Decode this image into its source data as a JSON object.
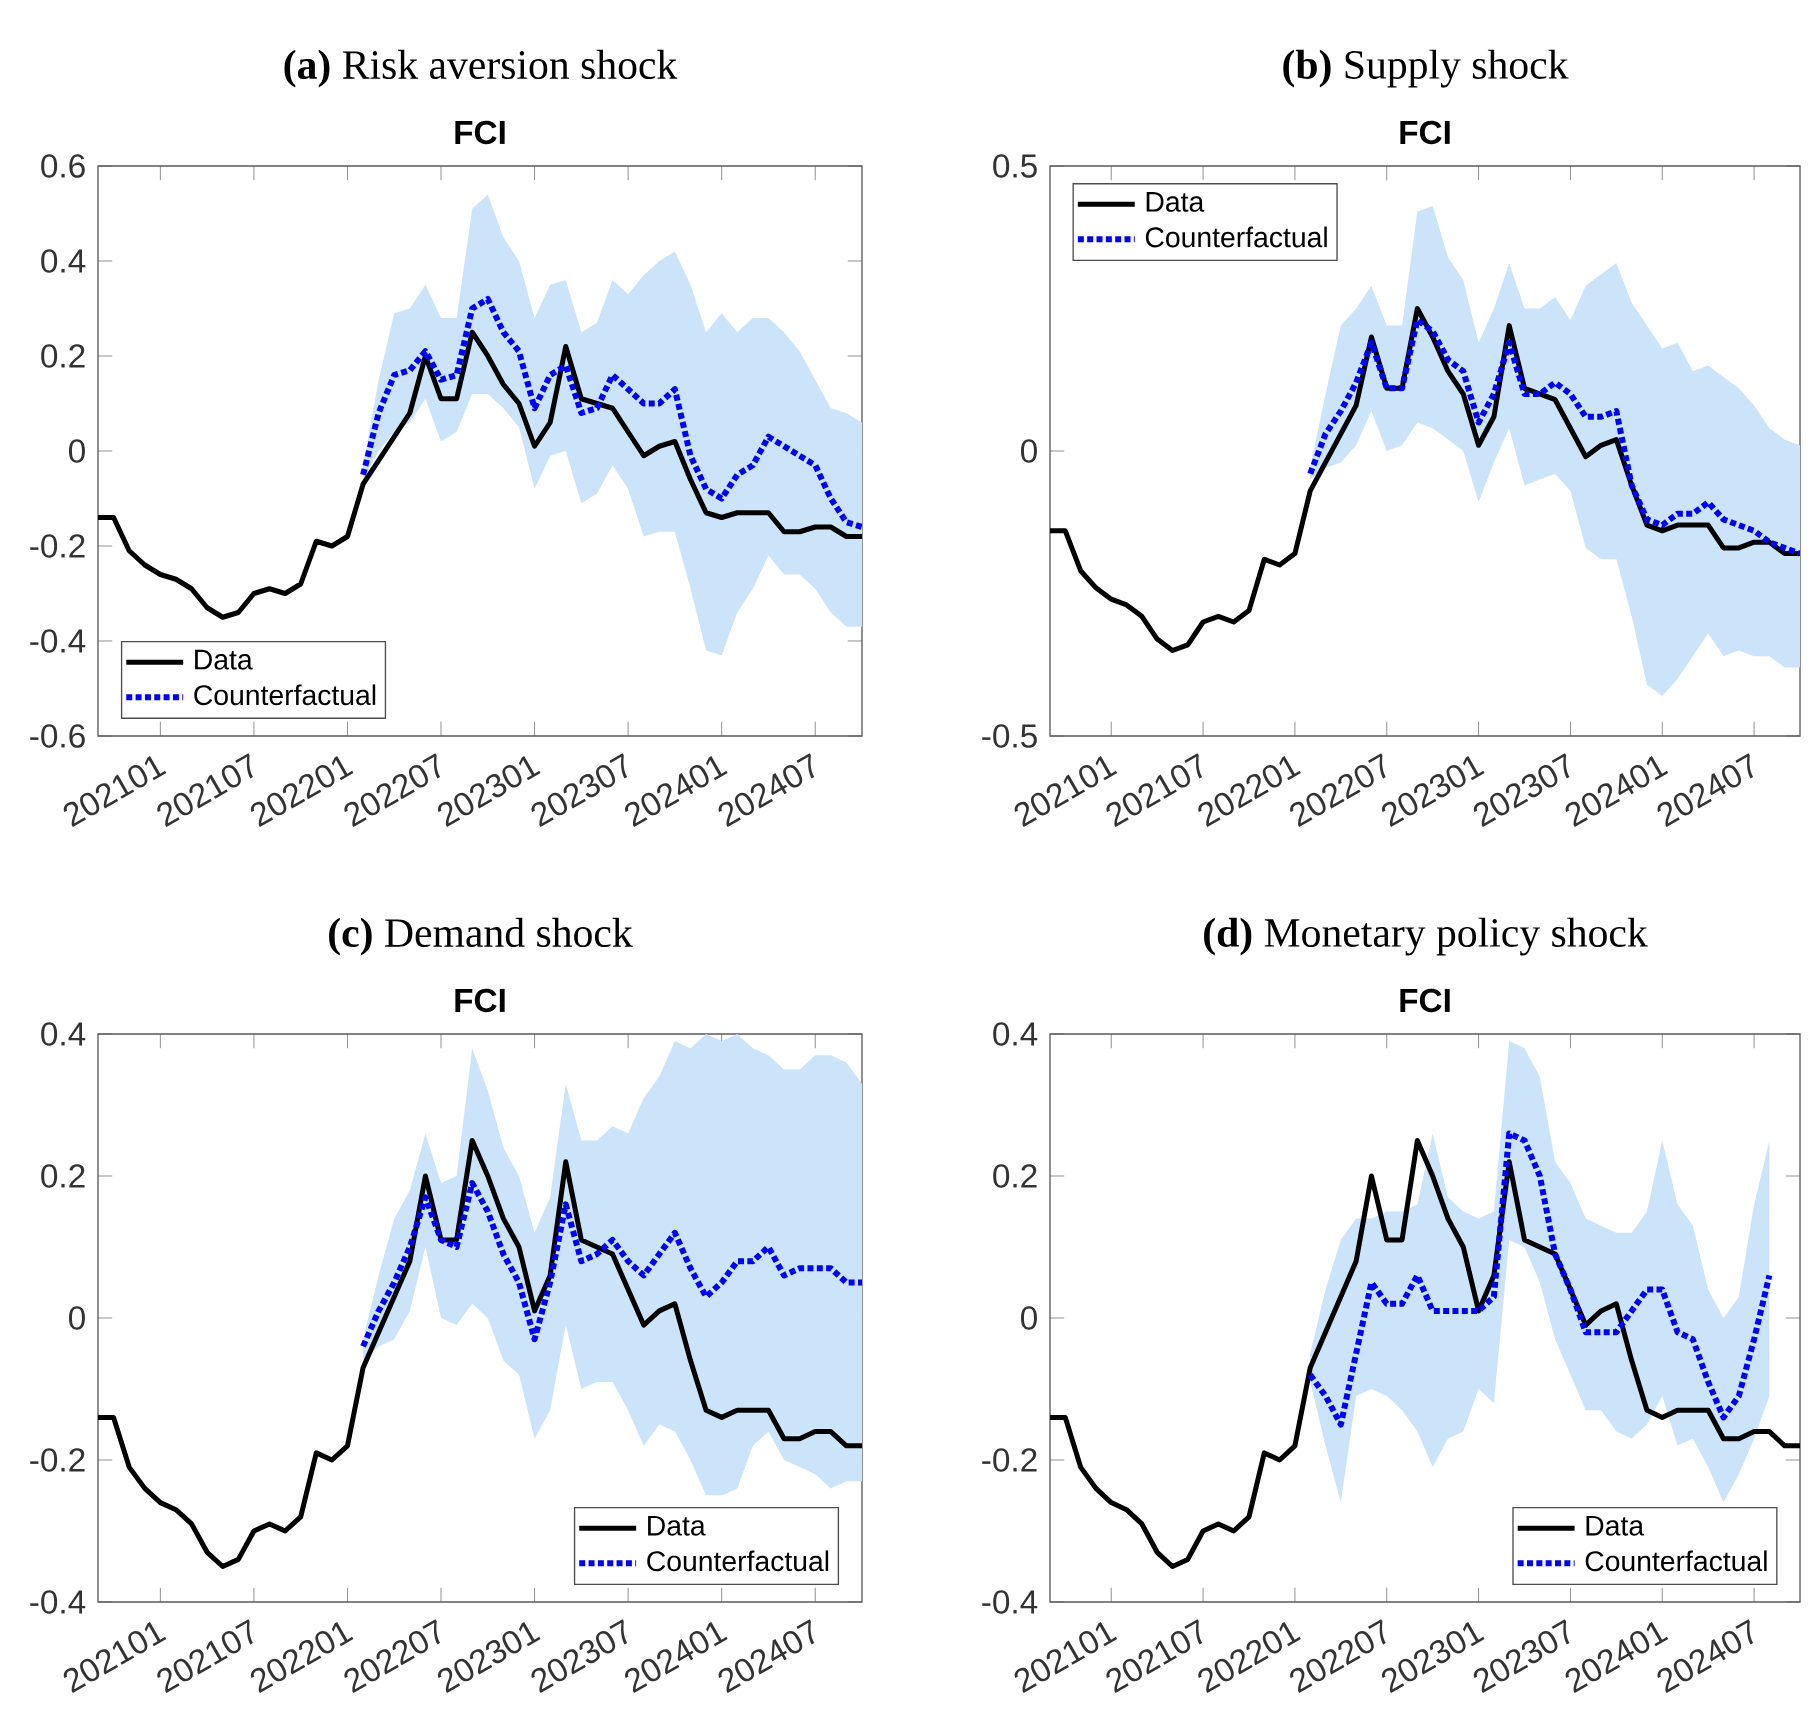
{
  "chart_data": [
    {
      "type": "line",
      "title": "**(a)** Risk aversion shock",
      "subtitle": "FCI",
      "legend": "bottom left",
      "xlim": [
        "2020-09",
        "2024-10"
      ],
      "ylim": [
        -0.6,
        0.6
      ],
      "yticks": [
        -0.6,
        -0.4,
        -0.2,
        0,
        0.2,
        0.4,
        0.6
      ],
      "xticks": [
        {
          "value": "2021-01",
          "label": "202101"
        },
        {
          "value": "2021-07",
          "label": "202107"
        },
        {
          "value": "2022-01",
          "label": "202201"
        },
        {
          "value": "2022-07",
          "label": "202207"
        },
        {
          "value": "2023-01",
          "label": "202301"
        },
        {
          "value": "2023-07",
          "label": "202307"
        },
        {
          "value": "2024-01",
          "label": "202401"
        },
        {
          "value": "2024-07",
          "label": "202407"
        }
      ],
      "x": [
        "2020-09",
        "2020-10",
        "2020-11",
        "2020-12",
        "2021-01",
        "2021-02",
        "2021-03",
        "2021-04",
        "2021-05",
        "2021-06",
        "2021-07",
        "2021-08",
        "2021-09",
        "2021-10",
        "2021-11",
        "2021-12",
        "2022-01",
        "2022-02",
        "2022-03",
        "2022-04",
        "2022-05",
        "2022-06",
        "2022-07",
        "2022-08",
        "2022-09",
        "2022-10",
        "2022-11",
        "2022-12",
        "2023-01",
        "2023-02",
        "2023-03",
        "2023-04",
        "2023-05",
        "2023-06",
        "2023-07",
        "2023-08",
        "2023-09",
        "2023-10",
        "2023-11",
        "2023-12",
        "2024-01",
        "2024-02",
        "2024-03",
        "2024-04",
        "2024-05",
        "2024-06",
        "2024-07",
        "2024-08",
        "2024-09",
        "2024-10"
      ],
      "series": [
        {
          "name": "Data",
          "color": "#000000",
          "line_style": "solid",
          "values": [
            -0.14,
            -0.14,
            -0.21,
            -0.24,
            -0.26,
            -0.27,
            -0.29,
            -0.33,
            -0.35,
            -0.34,
            -0.3,
            -0.29,
            -0.3,
            -0.28,
            -0.19,
            -0.2,
            -0.18,
            -0.07,
            -0.02,
            0.03,
            0.08,
            0.2,
            0.11,
            0.11,
            0.25,
            0.2,
            0.14,
            0.1,
            0.01,
            0.06,
            0.22,
            0.11,
            0.1,
            0.09,
            0.04,
            -0.01,
            0.01,
            0.02,
            -0.06,
            -0.13,
            -0.14,
            -0.13,
            -0.13,
            -0.13,
            -0.17,
            -0.17,
            -0.16,
            -0.16,
            -0.18,
            -0.18
          ]
        },
        {
          "name": "Counterfactual",
          "color": "#0000ff",
          "line_style": "dotted",
          "x": [
            "2022-02",
            "2022-03",
            "2022-04",
            "2022-05",
            "2022-06",
            "2022-07",
            "2022-08",
            "2022-09",
            "2022-10",
            "2022-11",
            "2022-12",
            "2023-01",
            "2023-02",
            "2023-03",
            "2023-04",
            "2023-05",
            "2023-06",
            "2023-07",
            "2023-08",
            "2023-09",
            "2023-10",
            "2023-11",
            "2023-12",
            "2024-01",
            "2024-02",
            "2024-03",
            "2024-04",
            "2024-05",
            "2024-06",
            "2024-07",
            "2024-08",
            "2024-09",
            "2024-10"
          ],
          "values": [
            -0.05,
            0.08,
            0.16,
            0.17,
            0.21,
            0.15,
            0.16,
            0.3,
            0.32,
            0.25,
            0.21,
            0.09,
            0.16,
            0.18,
            0.08,
            0.09,
            0.16,
            0.13,
            0.1,
            0.1,
            0.13,
            -0.01,
            -0.08,
            -0.1,
            -0.05,
            -0.03,
            0.03,
            0.01,
            -0.01,
            -0.03,
            -0.1,
            -0.15,
            -0.16
          ],
          "upper": [
            -0.03,
            0.15,
            0.29,
            0.3,
            0.35,
            0.28,
            0.28,
            0.51,
            0.54,
            0.45,
            0.4,
            0.28,
            0.35,
            0.36,
            0.25,
            0.27,
            0.36,
            0.33,
            0.37,
            0.4,
            0.42,
            0.35,
            0.25,
            0.29,
            0.25,
            0.28,
            0.28,
            0.25,
            0.21,
            0.15,
            0.09,
            0.08,
            0.06
          ],
          "lower": [
            -0.06,
            0.0,
            0.04,
            0.06,
            0.11,
            0.02,
            0.04,
            0.12,
            0.12,
            0.09,
            0.05,
            -0.08,
            -0.01,
            0.0,
            -0.11,
            -0.09,
            -0.03,
            -0.08,
            -0.18,
            -0.17,
            -0.17,
            -0.29,
            -0.42,
            -0.43,
            -0.34,
            -0.29,
            -0.22,
            -0.26,
            -0.26,
            -0.29,
            -0.34,
            -0.37,
            -0.37
          ]
        }
      ]
    },
    {
      "type": "line",
      "title": "**(b)** Supply shock",
      "subtitle": "FCI",
      "legend": "top left",
      "xlim": [
        "2020-09",
        "2024-10"
      ],
      "ylim": [
        -0.5,
        0.5
      ],
      "yticks": [
        -0.5,
        0,
        0.5
      ],
      "xticks": [
        {
          "value": "2021-01",
          "label": "202101"
        },
        {
          "value": "2021-07",
          "label": "202107"
        },
        {
          "value": "2022-01",
          "label": "202201"
        },
        {
          "value": "2022-07",
          "label": "202207"
        },
        {
          "value": "2023-01",
          "label": "202301"
        },
        {
          "value": "2023-07",
          "label": "202307"
        },
        {
          "value": "2024-01",
          "label": "202401"
        },
        {
          "value": "2024-07",
          "label": "202407"
        }
      ],
      "x": [
        "2020-09",
        "2020-10",
        "2020-11",
        "2020-12",
        "2021-01",
        "2021-02",
        "2021-03",
        "2021-04",
        "2021-05",
        "2021-06",
        "2021-07",
        "2021-08",
        "2021-09",
        "2021-10",
        "2021-11",
        "2021-12",
        "2022-01",
        "2022-02",
        "2022-03",
        "2022-04",
        "2022-05",
        "2022-06",
        "2022-07",
        "2022-08",
        "2022-09",
        "2022-10",
        "2022-11",
        "2022-12",
        "2023-01",
        "2023-02",
        "2023-03",
        "2023-04",
        "2023-05",
        "2023-06",
        "2023-07",
        "2023-08",
        "2023-09",
        "2023-10",
        "2023-11",
        "2023-12",
        "2024-01",
        "2024-02",
        "2024-03",
        "2024-04",
        "2024-05",
        "2024-06",
        "2024-07",
        "2024-08",
        "2024-09",
        "2024-10"
      ],
      "series": [
        {
          "name": "Data",
          "color": "#000000",
          "line_style": "solid",
          "values": [
            -0.14,
            -0.14,
            -0.21,
            -0.24,
            -0.26,
            -0.27,
            -0.29,
            -0.33,
            -0.35,
            -0.34,
            -0.3,
            -0.29,
            -0.3,
            -0.28,
            -0.19,
            -0.2,
            -0.18,
            -0.07,
            -0.02,
            0.03,
            0.08,
            0.2,
            0.11,
            0.11,
            0.25,
            0.2,
            0.14,
            0.1,
            0.01,
            0.06,
            0.22,
            0.11,
            0.1,
            0.09,
            0.04,
            -0.01,
            0.01,
            0.02,
            -0.06,
            -0.13,
            -0.14,
            -0.13,
            -0.13,
            -0.13,
            -0.17,
            -0.17,
            -0.16,
            -0.16,
            -0.18,
            -0.18
          ]
        },
        {
          "name": "Counterfactual",
          "color": "#0000ff",
          "line_style": "dotted",
          "x": [
            "2022-02",
            "2022-03",
            "2022-04",
            "2022-05",
            "2022-06",
            "2022-07",
            "2022-08",
            "2022-09",
            "2022-10",
            "2022-11",
            "2022-12",
            "2023-01",
            "2023-02",
            "2023-03",
            "2023-04",
            "2023-05",
            "2023-06",
            "2023-07",
            "2023-08",
            "2023-09",
            "2023-10",
            "2023-11",
            "2023-12",
            "2024-01",
            "2024-02",
            "2024-03",
            "2024-04",
            "2024-05",
            "2024-06",
            "2024-07",
            "2024-08",
            "2024-09",
            "2024-10"
          ],
          "values": [
            -0.04,
            0.03,
            0.07,
            0.12,
            0.19,
            0.11,
            0.11,
            0.23,
            0.21,
            0.16,
            0.14,
            0.05,
            0.1,
            0.19,
            0.1,
            0.1,
            0.12,
            0.1,
            0.06,
            0.06,
            0.07,
            -0.06,
            -0.12,
            -0.13,
            -0.11,
            -0.11,
            -0.09,
            -0.12,
            -0.13,
            -0.14,
            -0.16,
            -0.17,
            -0.18
          ],
          "upper": [
            -0.03,
            0.1,
            0.22,
            0.25,
            0.29,
            0.22,
            0.22,
            0.42,
            0.43,
            0.34,
            0.3,
            0.19,
            0.25,
            0.33,
            0.25,
            0.25,
            0.27,
            0.23,
            0.29,
            0.31,
            0.33,
            0.26,
            0.22,
            0.18,
            0.19,
            0.14,
            0.15,
            0.13,
            0.11,
            0.08,
            0.04,
            0.02,
            0.01
          ],
          "lower": [
            -0.05,
            -0.03,
            -0.02,
            0.01,
            0.07,
            0.0,
            0.01,
            0.05,
            0.04,
            0.02,
            0.0,
            -0.09,
            -0.02,
            0.04,
            -0.06,
            -0.05,
            -0.04,
            -0.07,
            -0.17,
            -0.19,
            -0.19,
            -0.29,
            -0.41,
            -0.43,
            -0.4,
            -0.36,
            -0.32,
            -0.36,
            -0.35,
            -0.36,
            -0.36,
            -0.38,
            -0.38
          ]
        }
      ]
    },
    {
      "type": "line",
      "title": "**(c)** Demand shock",
      "subtitle": "FCI",
      "legend": "bottom right",
      "xlim": [
        "2020-09",
        "2024-10"
      ],
      "ylim": [
        -0.4,
        0.4
      ],
      "yticks": [
        -0.4,
        -0.2,
        0,
        0.2,
        0.4
      ],
      "xticks": [
        {
          "value": "2021-01",
          "label": "202101"
        },
        {
          "value": "2021-07",
          "label": "202107"
        },
        {
          "value": "2022-01",
          "label": "202201"
        },
        {
          "value": "2022-07",
          "label": "202207"
        },
        {
          "value": "2023-01",
          "label": "202301"
        },
        {
          "value": "2023-07",
          "label": "202307"
        },
        {
          "value": "2024-01",
          "label": "202401"
        },
        {
          "value": "2024-07",
          "label": "202407"
        }
      ],
      "x": [
        "2020-09",
        "2020-10",
        "2020-11",
        "2020-12",
        "2021-01",
        "2021-02",
        "2021-03",
        "2021-04",
        "2021-05",
        "2021-06",
        "2021-07",
        "2021-08",
        "2021-09",
        "2021-10",
        "2021-11",
        "2021-12",
        "2022-01",
        "2022-02",
        "2022-03",
        "2022-04",
        "2022-05",
        "2022-06",
        "2022-07",
        "2022-08",
        "2022-09",
        "2022-10",
        "2022-11",
        "2022-12",
        "2023-01",
        "2023-02",
        "2023-03",
        "2023-04",
        "2023-05",
        "2023-06",
        "2023-07",
        "2023-08",
        "2023-09",
        "2023-10",
        "2023-11",
        "2023-12",
        "2024-01",
        "2024-02",
        "2024-03",
        "2024-04",
        "2024-05",
        "2024-06",
        "2024-07",
        "2024-08",
        "2024-09",
        "2024-10"
      ],
      "series": [
        {
          "name": "Data",
          "color": "#000000",
          "line_style": "solid",
          "values": [
            -0.14,
            -0.14,
            -0.21,
            -0.24,
            -0.26,
            -0.27,
            -0.29,
            -0.33,
            -0.35,
            -0.34,
            -0.3,
            -0.29,
            -0.3,
            -0.28,
            -0.19,
            -0.2,
            -0.18,
            -0.07,
            -0.02,
            0.03,
            0.08,
            0.2,
            0.11,
            0.11,
            0.25,
            0.2,
            0.14,
            0.1,
            0.01,
            0.06,
            0.22,
            0.11,
            0.1,
            0.09,
            0.04,
            -0.01,
            0.01,
            0.02,
            -0.06,
            -0.13,
            -0.14,
            -0.13,
            -0.13,
            -0.13,
            -0.17,
            -0.17,
            -0.16,
            -0.16,
            -0.18,
            -0.18
          ]
        },
        {
          "name": "Counterfactual",
          "color": "#0000ff",
          "line_style": "dotted",
          "x": [
            "2022-02",
            "2022-03",
            "2022-04",
            "2022-05",
            "2022-06",
            "2022-07",
            "2022-08",
            "2022-09",
            "2022-10",
            "2022-11",
            "2022-12",
            "2023-01",
            "2023-02",
            "2023-03",
            "2023-04",
            "2023-05",
            "2023-06",
            "2023-07",
            "2023-08",
            "2023-09",
            "2023-10",
            "2023-11",
            "2023-12",
            "2024-01",
            "2024-02",
            "2024-03",
            "2024-04",
            "2024-05",
            "2024-06",
            "2024-07",
            "2024-08",
            "2024-09",
            "2024-10"
          ],
          "values": [
            -0.04,
            0.01,
            0.05,
            0.1,
            0.17,
            0.11,
            0.1,
            0.19,
            0.15,
            0.09,
            0.05,
            -0.03,
            0.05,
            0.16,
            0.08,
            0.09,
            0.11,
            0.08,
            0.06,
            0.09,
            0.12,
            0.07,
            0.03,
            0.05,
            0.08,
            0.08,
            0.1,
            0.06,
            0.07,
            0.07,
            0.07,
            0.05,
            0.05
          ],
          "upper": [
            -0.03,
            0.06,
            0.14,
            0.18,
            0.26,
            0.19,
            0.2,
            0.38,
            0.32,
            0.24,
            0.2,
            0.12,
            0.17,
            0.33,
            0.25,
            0.25,
            0.27,
            0.26,
            0.31,
            0.34,
            0.39,
            0.38,
            0.4,
            0.39,
            0.4,
            0.38,
            0.37,
            0.35,
            0.35,
            0.37,
            0.37,
            0.36,
            0.33
          ],
          "lower": [
            -0.06,
            -0.04,
            -0.03,
            0.01,
            0.1,
            0.0,
            -0.01,
            0.02,
            0.0,
            -0.06,
            -0.08,
            -0.17,
            -0.13,
            -0.01,
            -0.1,
            -0.09,
            -0.09,
            -0.13,
            -0.18,
            -0.15,
            -0.16,
            -0.2,
            -0.25,
            -0.25,
            -0.24,
            -0.18,
            -0.16,
            -0.2,
            -0.21,
            -0.22,
            -0.24,
            -0.23,
            -0.23
          ]
        }
      ]
    },
    {
      "type": "line",
      "title": "**(d)** Monetary policy shock",
      "subtitle": "FCI",
      "legend": "bottom right",
      "xlim": [
        "2020-09",
        "2024-10"
      ],
      "ylim": [
        -0.4,
        0.4
      ],
      "yticks": [
        -0.4,
        -0.2,
        0,
        0.2,
        0.4
      ],
      "xticks": [
        {
          "value": "2021-01",
          "label": "202101"
        },
        {
          "value": "2021-07",
          "label": "202107"
        },
        {
          "value": "2022-01",
          "label": "202201"
        },
        {
          "value": "2022-07",
          "label": "202207"
        },
        {
          "value": "2023-01",
          "label": "202301"
        },
        {
          "value": "2023-07",
          "label": "202307"
        },
        {
          "value": "2024-01",
          "label": "202401"
        },
        {
          "value": "2024-07",
          "label": "202407"
        }
      ],
      "x": [
        "2020-09",
        "2020-10",
        "2020-11",
        "2020-12",
        "2021-01",
        "2021-02",
        "2021-03",
        "2021-04",
        "2021-05",
        "2021-06",
        "2021-07",
        "2021-08",
        "2021-09",
        "2021-10",
        "2021-11",
        "2021-12",
        "2022-01",
        "2022-02",
        "2022-03",
        "2022-04",
        "2022-05",
        "2022-06",
        "2022-07",
        "2022-08",
        "2022-09",
        "2022-10",
        "2022-11",
        "2022-12",
        "2023-01",
        "2023-02",
        "2023-03",
        "2023-04",
        "2023-05",
        "2023-06",
        "2023-07",
        "2023-08",
        "2023-09",
        "2023-10",
        "2023-11",
        "2023-12",
        "2024-01",
        "2024-02",
        "2024-03",
        "2024-04",
        "2024-05",
        "2024-06",
        "2024-07",
        "2024-08",
        "2024-09",
        "2024-10"
      ],
      "series": [
        {
          "name": "Data",
          "color": "#000000",
          "line_style": "solid",
          "values": [
            -0.14,
            -0.14,
            -0.21,
            -0.24,
            -0.26,
            -0.27,
            -0.29,
            -0.33,
            -0.35,
            -0.34,
            -0.3,
            -0.29,
            -0.3,
            -0.28,
            -0.19,
            -0.2,
            -0.18,
            -0.07,
            -0.02,
            0.03,
            0.08,
            0.2,
            0.11,
            0.11,
            0.25,
            0.2,
            0.14,
            0.1,
            0.01,
            0.06,
            0.22,
            0.11,
            0.1,
            0.09,
            0.04,
            -0.01,
            0.01,
            0.02,
            -0.06,
            -0.13,
            -0.14,
            -0.13,
            -0.13,
            -0.13,
            -0.17,
            -0.17,
            -0.16,
            -0.16,
            -0.18,
            -0.18
          ]
        },
        {
          "name": "Counterfactual",
          "color": "#0000ff",
          "line_style": "dotted",
          "x": [
            "2022-02",
            "2022-03",
            "2022-04",
            "2022-05",
            "2022-06",
            "2022-07",
            "2022-08",
            "2022-09",
            "2022-10",
            "2022-11",
            "2022-12",
            "2023-01",
            "2023-02",
            "2023-03",
            "2023-04",
            "2023-05",
            "2023-06",
            "2023-07",
            "2023-08",
            "2023-09",
            "2023-10",
            "2023-11",
            "2023-12",
            "2024-01",
            "2024-02",
            "2024-03",
            "2024-04",
            "2024-05",
            "2024-06",
            "2024-07",
            "2024-08"
          ],
          "values": [
            -0.08,
            -0.11,
            -0.15,
            -0.05,
            0.05,
            0.02,
            0.02,
            0.06,
            0.01,
            0.01,
            0.01,
            0.01,
            0.03,
            0.26,
            0.25,
            0.2,
            0.09,
            0.04,
            -0.02,
            -0.02,
            -0.02,
            0.01,
            0.04,
            0.04,
            -0.02,
            -0.03,
            -0.09,
            -0.14,
            -0.11,
            -0.03,
            0.06
          ],
          "upper": [
            -0.05,
            0.04,
            0.11,
            0.14,
            0.14,
            0.15,
            0.15,
            0.16,
            0.26,
            0.17,
            0.15,
            0.14,
            0.15,
            0.39,
            0.38,
            0.34,
            0.22,
            0.19,
            0.14,
            0.13,
            0.12,
            0.12,
            0.15,
            0.25,
            0.16,
            0.13,
            0.04,
            0.0,
            0.03,
            0.16,
            0.25
          ],
          "lower": [
            -0.09,
            -0.18,
            -0.26,
            -0.11,
            -0.1,
            -0.11,
            -0.13,
            -0.16,
            -0.21,
            -0.17,
            -0.16,
            -0.1,
            -0.12,
            0.11,
            0.1,
            0.05,
            -0.03,
            -0.08,
            -0.13,
            -0.13,
            -0.16,
            -0.17,
            -0.15,
            -0.11,
            -0.18,
            -0.17,
            -0.21,
            -0.26,
            -0.22,
            -0.17,
            -0.11
          ]
        }
      ]
    }
  ]
}
